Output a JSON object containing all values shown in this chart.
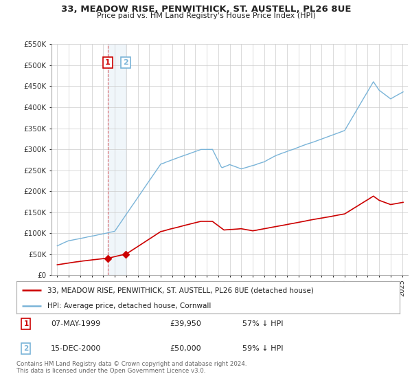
{
  "title": "33, MEADOW RISE, PENWITHICK, ST. AUSTELL, PL26 8UE",
  "subtitle": "Price paid vs. HM Land Registry's House Price Index (HPI)",
  "footer": "Contains HM Land Registry data © Crown copyright and database right 2024.\nThis data is licensed under the Open Government Licence v3.0.",
  "legend_line1": "33, MEADOW RISE, PENWITHICK, ST. AUSTELL, PL26 8UE (detached house)",
  "legend_line2": "HPI: Average price, detached house, Cornwall",
  "sale1_date": "07-MAY-1999",
  "sale1_price": "£39,950",
  "sale1_hpi": "57% ↓ HPI",
  "sale2_date": "15-DEC-2000",
  "sale2_price": "£50,000",
  "sale2_hpi": "59% ↓ HPI",
  "sale1_x": 1999.37,
  "sale1_y": 39950,
  "sale2_x": 2000.96,
  "sale2_y": 50000,
  "hpi_color": "#7ab4d8",
  "property_color": "#cc0000",
  "ylim": [
    0,
    550000
  ],
  "yticks": [
    0,
    50000,
    100000,
    150000,
    200000,
    250000,
    300000,
    350000,
    400000,
    450000,
    500000,
    550000
  ],
  "ytick_labels": [
    "£0",
    "£50K",
    "£100K",
    "£150K",
    "£200K",
    "£250K",
    "£300K",
    "£350K",
    "£400K",
    "£450K",
    "£500K",
    "£550K"
  ],
  "xlim": [
    1994.5,
    2025.5
  ],
  "background_color": "#ffffff",
  "grid_color": "#cccccc",
  "vspan_color": "#c6dcee",
  "num_box1_color": "#cc0000",
  "num_box2_color": "#7ab4d8"
}
